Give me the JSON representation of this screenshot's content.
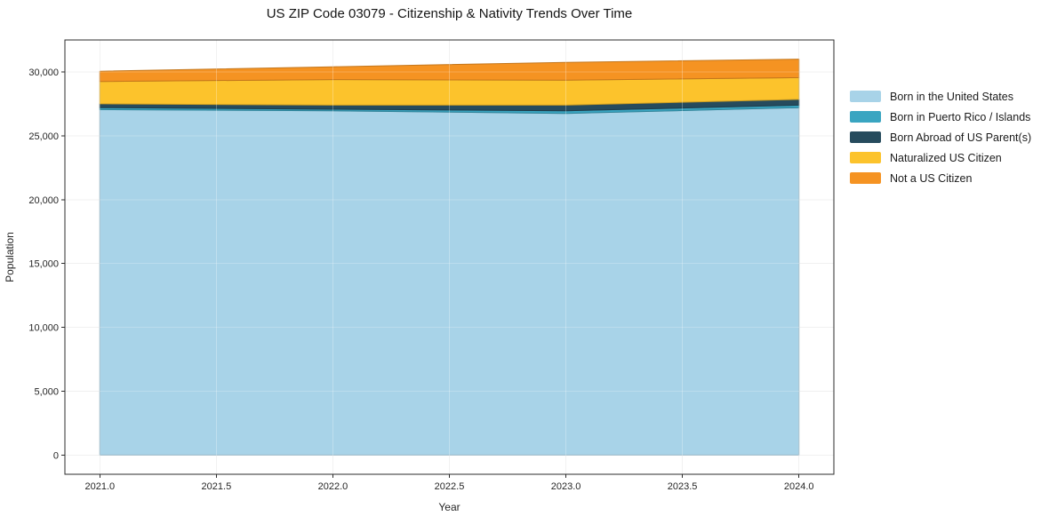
{
  "chart_data": {
    "type": "area",
    "stacked": true,
    "title": "US ZIP Code 03079 - Citizenship & Nativity Trends Over Time",
    "xlabel": "Year",
    "ylabel": "Population",
    "x": [
      2021,
      2022,
      2023,
      2024
    ],
    "series": [
      {
        "name": "Born in the United States",
        "color": "#a8d3e8",
        "values": [
          27050,
          26950,
          26750,
          27200
        ]
      },
      {
        "name": "Born in Puerto Rico / Islands",
        "color": "#3aa5c1",
        "values": [
          150,
          130,
          200,
          200
        ]
      },
      {
        "name": "Born Abroad of US Parent(s)",
        "color": "#264b5d",
        "values": [
          300,
          320,
          450,
          450
        ]
      },
      {
        "name": "Naturalized US Citizen",
        "color": "#fcc32c",
        "values": [
          1750,
          2000,
          1950,
          1700
        ]
      },
      {
        "name": "Not a US Citizen",
        "color": "#f59322",
        "values": [
          800,
          1000,
          1400,
          1450
        ]
      }
    ],
    "totals": [
      30050,
      30400,
      30750,
      31000
    ],
    "xlim": [
      2020.85,
      2024.15
    ],
    "ylim": [
      -1500,
      32500
    ],
    "xticks": [
      2021.0,
      2021.5,
      2022.0,
      2022.5,
      2023.0,
      2023.5,
      2024.0
    ],
    "xtick_labels": [
      "2021.0",
      "2021.5",
      "2022.0",
      "2022.5",
      "2023.0",
      "2023.5",
      "2024.0"
    ],
    "yticks": [
      0,
      5000,
      10000,
      15000,
      20000,
      25000,
      30000
    ],
    "ytick_labels": [
      "0",
      "5,000",
      "10,000",
      "15,000",
      "20,000",
      "25,000",
      "30,000"
    ],
    "grid": true,
    "legend_position": "right",
    "colors": {
      "background": "#ffffff",
      "frame": "#2b2b2b",
      "grid": "#ececec",
      "tick_text": "#262626"
    }
  }
}
